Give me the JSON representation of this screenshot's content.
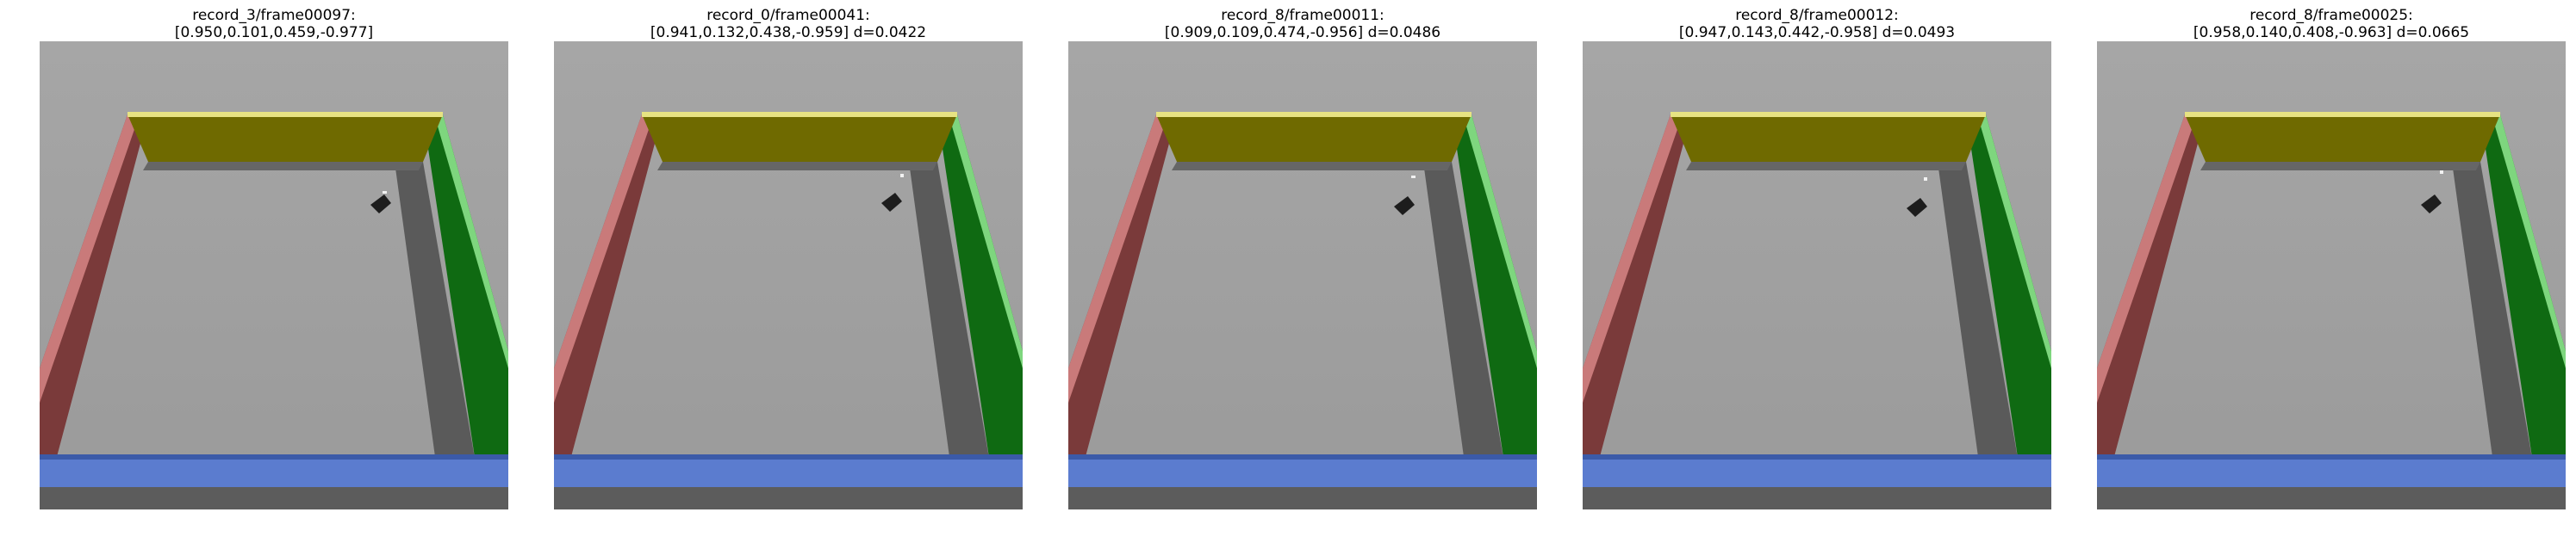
{
  "panels": [
    {
      "title_line1": "record_3/frame00097:",
      "title_line2": "[0.950,0.101,0.459,-0.977]"
    },
    {
      "title_line1": "record_0/frame00041:",
      "title_line2": "[0.941,0.132,0.438,-0.959] d=0.0422"
    },
    {
      "title_line1": "record_8/frame00011:",
      "title_line2": "[0.909,0.109,0.474,-0.956] d=0.0486"
    },
    {
      "title_line1": "record_8/frame00012:",
      "title_line2": "[0.947,0.143,0.442,-0.958] d=0.0493"
    },
    {
      "title_line1": "record_8/frame00025:",
      "title_line2": "[0.958,0.140,0.408,-0.963] d=0.0665"
    }
  ],
  "colors": {
    "floor": "#9a9a9a",
    "wall_back": "#6f6a00",
    "wall_left": "#7a3a3a",
    "wall_right": "#0f6a12",
    "wall_front": "#5b7ccf",
    "robot": "#1d1d1d"
  },
  "icons": {
    "robot": "robot-icon"
  }
}
